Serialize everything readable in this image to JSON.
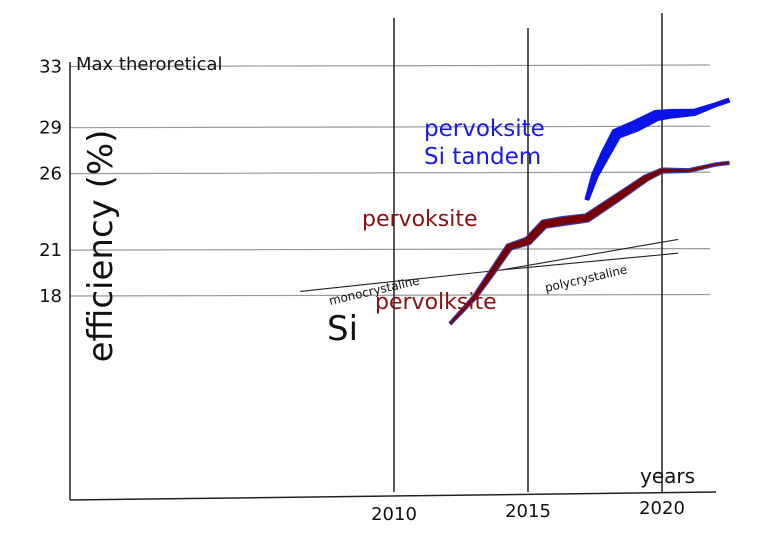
{
  "chart_data": {
    "type": "line",
    "title": "",
    "xlabel": "years",
    "ylabel": "efficiency (%)",
    "x_ticks": [
      "2010",
      "2015",
      "2020"
    ],
    "y_ticks": [
      "18",
      "21",
      "26",
      "29",
      "33"
    ],
    "grid": true,
    "annotations": {
      "max_label": "Max theroretical",
      "si_label": "Si",
      "mono_label": "monocrystaline",
      "poly_label": "polycrystaline",
      "pero_label_low": "pervolksite",
      "pero_label_mid": "pervoksite",
      "tandem_label_line1": "pervoksite",
      "tandem_label_line2": "Si tandem"
    },
    "colors": {
      "perovskite": "#7a0000",
      "perovskite_edge": "#3a3fa8",
      "tandem": "#0a14e6",
      "text_perovskite": "#8b1010",
      "text_tandem": "#1a1ae6",
      "grid": "#999999",
      "axis": "#222222"
    },
    "series": [
      {
        "name": "pervoksite",
        "x": [
          2012.1,
          2013.0,
          2013.6,
          2014.3,
          2015.0,
          2015.6,
          2016.3,
          2017.2,
          2018.4,
          2019.4,
          2020.0,
          2021.0,
          2022.0,
          2022.5
        ],
        "y": [
          16.2,
          17.9,
          19.4,
          21.2,
          21.6,
          22.7,
          22.9,
          23.1,
          24.5,
          25.7,
          26.2,
          26.2,
          26.6,
          26.7
        ]
      },
      {
        "name": "pervoksite Si tandem",
        "x": [
          2017.2,
          2017.5,
          2017.9,
          2018.3,
          2019.0,
          2019.8,
          2020.3,
          2021.2,
          2022.0,
          2022.5
        ],
        "y": [
          24.3,
          25.9,
          27.3,
          28.6,
          29.1,
          29.8,
          29.9,
          30.0,
          30.5,
          30.8
        ]
      },
      {
        "name": "monocrystaline",
        "x": [
          2006.5,
          2014.0,
          2020.6
        ],
        "y": [
          18.3,
          19.7,
          21.7
        ]
      },
      {
        "name": "polycrystaline",
        "x": [
          2014.0,
          2020.6
        ],
        "y": [
          19.7,
          20.8
        ]
      }
    ]
  }
}
